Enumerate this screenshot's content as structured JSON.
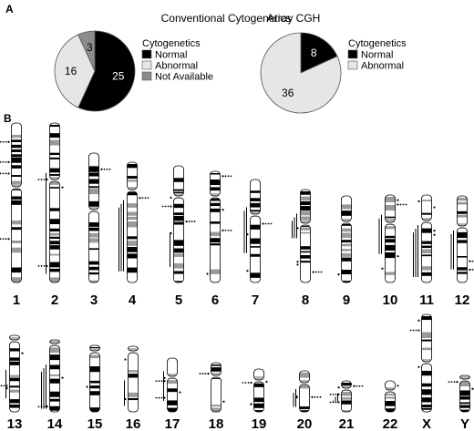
{
  "panel_a_label": "A",
  "panel_b_label": "B",
  "chart_data": [
    {
      "type": "pie",
      "title": "Conventional Cytogenetics",
      "legend_title": "Cytogenetics",
      "slices": [
        {
          "label": "Normal",
          "value": 25,
          "color": "#000000",
          "text_color": "#ffffff"
        },
        {
          "label": "Abnormal",
          "value": 16,
          "color": "#e6e6e6",
          "text_color": "#000000"
        },
        {
          "label": "Not Available",
          "value": 3,
          "color": "#8c8c8c",
          "text_color": "#000000"
        }
      ]
    },
    {
      "type": "pie",
      "title": "Array CGH",
      "legend_title": "Cytogenetics",
      "slices": [
        {
          "label": "Normal",
          "value": 8,
          "color": "#000000",
          "text_color": "#ffffff"
        },
        {
          "label": "Abnormal",
          "value": 36,
          "color": "#e6e6e6",
          "text_color": "#000000"
        }
      ]
    }
  ],
  "chromosomes": {
    "row1": [
      "1",
      "2",
      "3",
      "4",
      "5",
      "6",
      "7",
      "8",
      "9",
      "10",
      "11",
      "12"
    ],
    "row2": [
      "13",
      "14",
      "15",
      "16",
      "17",
      "18",
      "19",
      "20",
      "21",
      "22",
      "X",
      "Y"
    ]
  }
}
